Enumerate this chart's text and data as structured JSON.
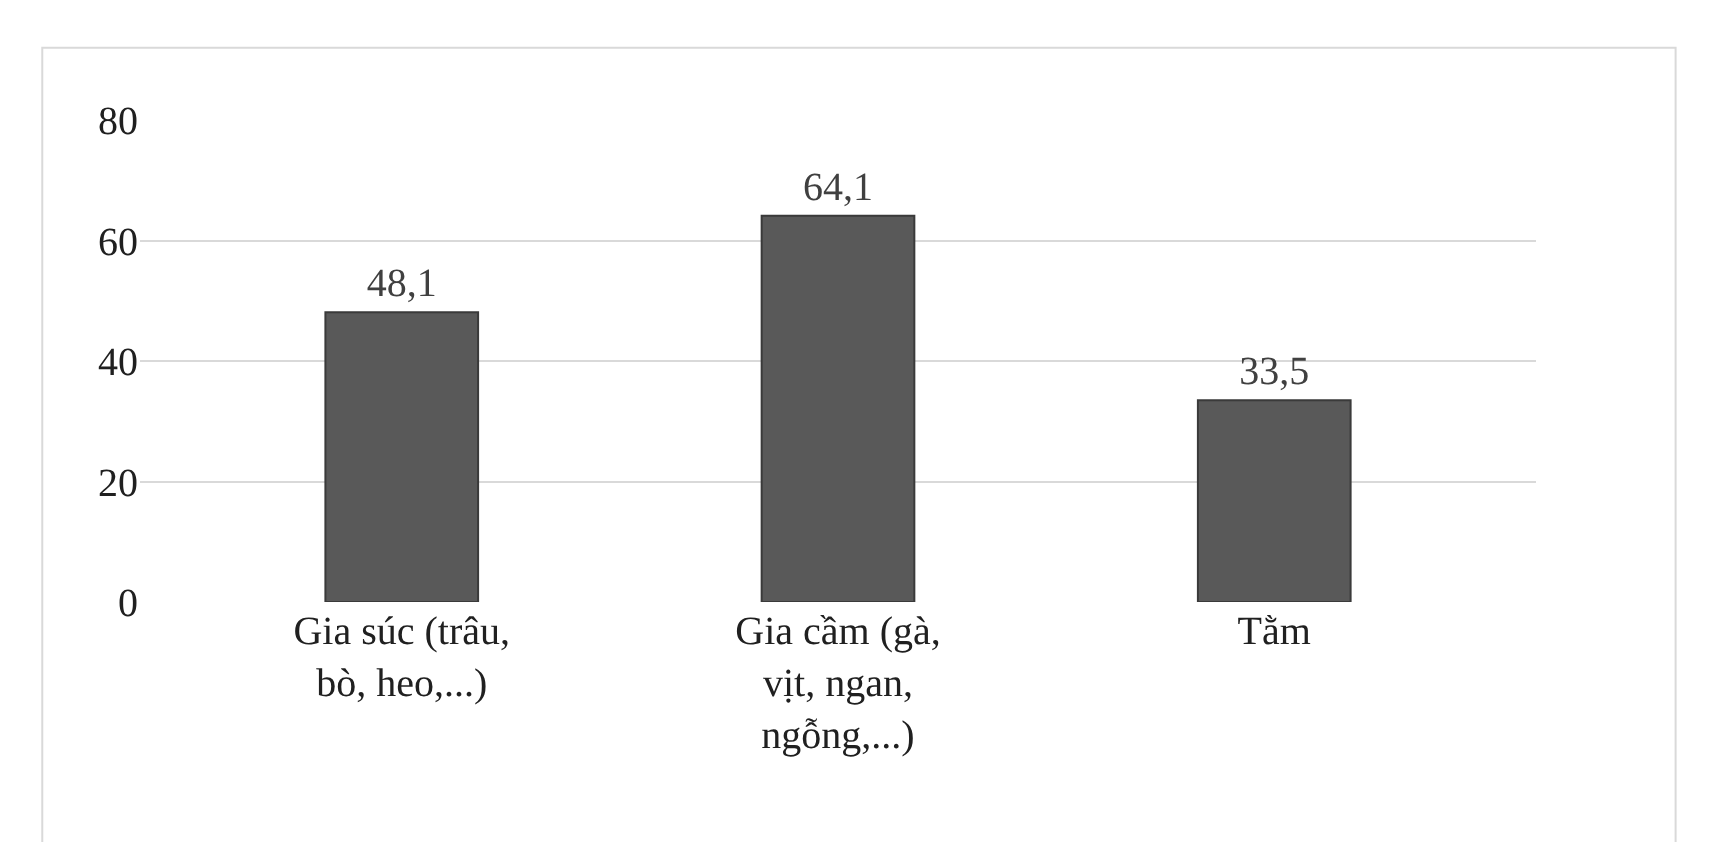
{
  "chart_data": {
    "type": "bar",
    "categories": [
      "Gia súc (trâu, bò, heo,...)",
      "Gia cầm (gà, vịt, ngan, ngỗng,...)",
      "Tằm"
    ],
    "values": [
      48.1,
      64.1,
      33.5
    ],
    "value_labels": [
      "48,1",
      "64,1",
      "33,5"
    ],
    "color": "#595959",
    "ylim": [
      0,
      80
    ],
    "yticks": [
      0,
      20,
      40,
      60,
      80
    ],
    "grid": "y",
    "legend": false
  }
}
